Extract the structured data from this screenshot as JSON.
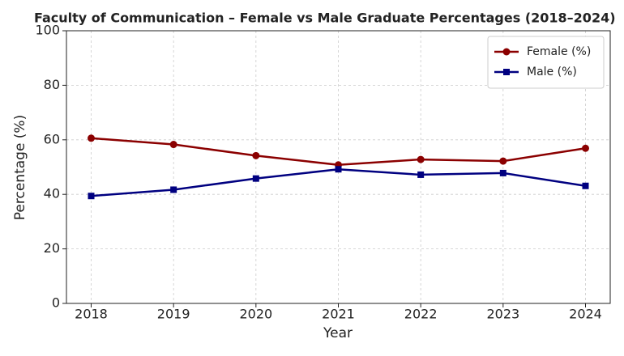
{
  "chart_data": {
    "type": "line",
    "title": "Faculty of Communication – Female vs Male Graduate Percentages (2018–2024)",
    "xlabel": "Year",
    "ylabel": "Percentage (%)",
    "x": [
      2018,
      2019,
      2020,
      2021,
      2022,
      2023,
      2024
    ],
    "series": [
      {
        "name": "Female (%)",
        "color": "#8b0000",
        "marker": "circle",
        "values": [
          60.6,
          58.3,
          54.2,
          50.8,
          52.8,
          52.2,
          56.9
        ]
      },
      {
        "name": "Male (%)",
        "color": "#000080",
        "marker": "square",
        "values": [
          39.4,
          41.7,
          45.8,
          49.2,
          47.2,
          47.8,
          43.1
        ]
      }
    ],
    "xlim": [
      2017.7,
      2024.3
    ],
    "xticks": [
      2018,
      2019,
      2020,
      2021,
      2022,
      2023,
      2024
    ],
    "ylim": [
      0,
      100
    ],
    "yticks": [
      0,
      20,
      40,
      60,
      80,
      100
    ],
    "grid": true,
    "legend": "upper right"
  }
}
